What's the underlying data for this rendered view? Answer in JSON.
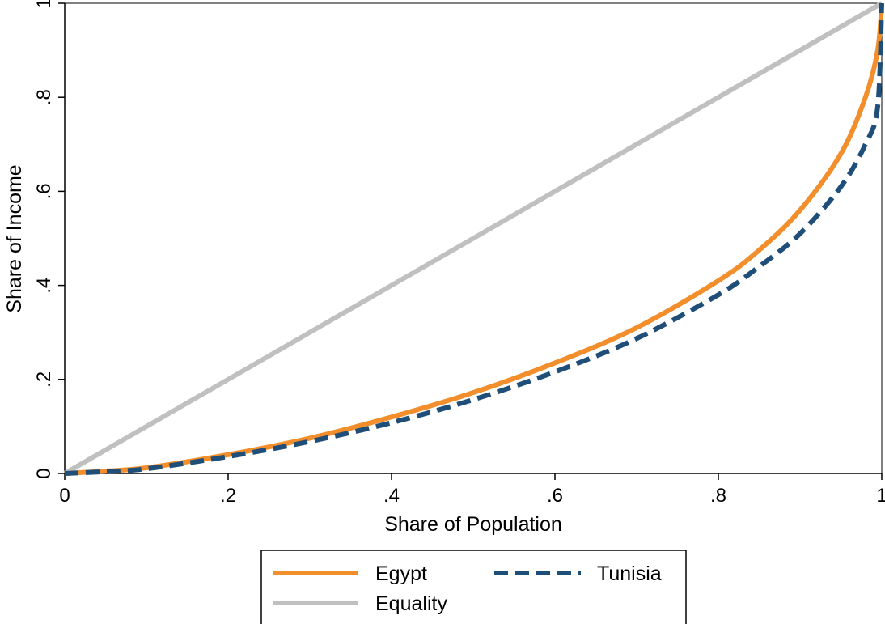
{
  "chart_data": {
    "type": "line",
    "title": "",
    "xlabel": "Share of Population",
    "ylabel": "Share of Income",
    "xlim": [
      0,
      1
    ],
    "ylim": [
      0,
      1
    ],
    "x_ticks": [
      0,
      0.2,
      0.4,
      0.6,
      0.8,
      1
    ],
    "x_tick_labels": [
      "0",
      ".2",
      ".4",
      ".6",
      ".8",
      "1"
    ],
    "y_ticks": [
      0,
      0.2,
      0.4,
      0.6,
      0.8,
      1
    ],
    "y_tick_labels": [
      "0",
      ".2",
      ".4",
      ".6",
      ".8",
      "1"
    ],
    "grid": false,
    "legend_position": "bottom",
    "series": [
      {
        "name": "Egypt",
        "color": "#f28e2b",
        "style": "solid",
        "points": [
          [
            0,
            0
          ],
          [
            0.05,
            0.005
          ],
          [
            0.1,
            0.012
          ],
          [
            0.2,
            0.04
          ],
          [
            0.3,
            0.075
          ],
          [
            0.4,
            0.12
          ],
          [
            0.5,
            0.172
          ],
          [
            0.6,
            0.235
          ],
          [
            0.7,
            0.31
          ],
          [
            0.8,
            0.41
          ],
          [
            0.85,
            0.475
          ],
          [
            0.9,
            0.56
          ],
          [
            0.95,
            0.68
          ],
          [
            0.98,
            0.8
          ],
          [
            0.995,
            0.9
          ],
          [
            1,
            1
          ]
        ]
      },
      {
        "name": "Tunisia",
        "color": "#1f4e79",
        "style": "dashed",
        "points": [
          [
            0,
            0
          ],
          [
            0.05,
            0.004
          ],
          [
            0.1,
            0.01
          ],
          [
            0.2,
            0.036
          ],
          [
            0.3,
            0.068
          ],
          [
            0.4,
            0.108
          ],
          [
            0.5,
            0.157
          ],
          [
            0.6,
            0.216
          ],
          [
            0.7,
            0.287
          ],
          [
            0.8,
            0.38
          ],
          [
            0.85,
            0.44
          ],
          [
            0.9,
            0.51
          ],
          [
            0.95,
            0.61
          ],
          [
            0.98,
            0.7
          ],
          [
            0.995,
            0.78
          ],
          [
            1,
            1
          ]
        ]
      },
      {
        "name": "Equality",
        "color": "#c0c0c0",
        "style": "solid",
        "points": [
          [
            0,
            0
          ],
          [
            1,
            1
          ]
        ]
      }
    ]
  }
}
